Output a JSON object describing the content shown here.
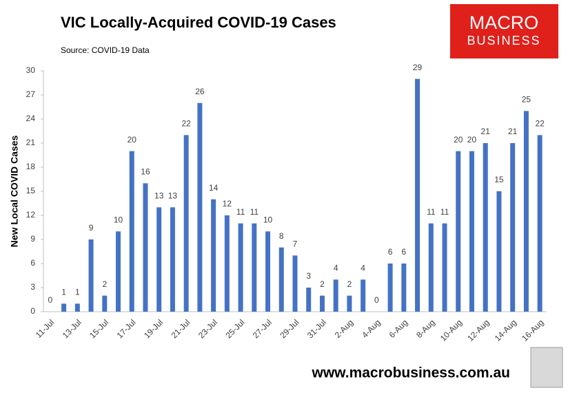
{
  "chart_data": {
    "type": "bar",
    "title": "VIC Locally-Acquired COVID-19 Cases",
    "subtitle": "Source: COVID-19 Data",
    "y_label": "New Local COVID Cases",
    "categories": [
      "11-Jul",
      null,
      "13-Jul",
      null,
      "15-Jul",
      null,
      "17-Jul",
      null,
      "19-Jul",
      null,
      "21-Jul",
      null,
      "23-Jul",
      null,
      "25-Jul",
      null,
      "27-Jul",
      null,
      "29-Jul",
      null,
      "31-Jul",
      null,
      "2-Aug",
      null,
      "4-Aug",
      null,
      "6-Aug",
      null,
      "8-Aug",
      null,
      "10-Aug",
      null,
      "12-Aug",
      null,
      "14-Aug",
      null,
      "16-Aug"
    ],
    "values": [
      0,
      1,
      1,
      9,
      2,
      10,
      20,
      16,
      13,
      13,
      22,
      26,
      14,
      12,
      11,
      11,
      10,
      8,
      7,
      3,
      2,
      4,
      2,
      4,
      0,
      6,
      6,
      29,
      11,
      11,
      20,
      20,
      21,
      15,
      21,
      25,
      22
    ],
    "color": "#4472c4",
    "ylim": [
      0,
      30
    ],
    "yticks": [
      0,
      3,
      6,
      9,
      12,
      15,
      18,
      21,
      24,
      27,
      30
    ],
    "grid": false
  },
  "logo": {
    "line1": "MACRO",
    "line2": "BUSINESS"
  },
  "footer": "www.macrobusiness.com.au"
}
